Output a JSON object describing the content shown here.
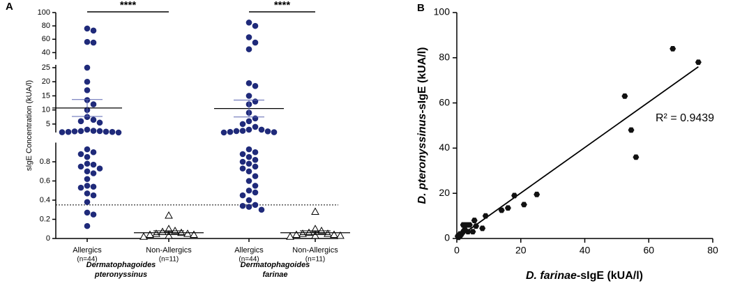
{
  "chart_data": [
    {
      "type": "dot",
      "panel": "A",
      "ylabel": "sIgE Concentration (kUA/l)",
      "y_segments": [
        {
          "ylim": [
            0,
            1
          ],
          "yticks": [
            0,
            0.2,
            0.4,
            0.6,
            0.8
          ]
        },
        {
          "ylim": [
            2,
            26
          ],
          "yticks": [
            5,
            10,
            15,
            20,
            25
          ]
        },
        {
          "ylim": [
            30,
            100
          ],
          "yticks": [
            40,
            60,
            80,
            100
          ]
        }
      ],
      "threshold": 0.35,
      "groups": [
        {
          "name": "Allergics",
          "n_label": "(n=44)",
          "marker": "circle",
          "color": "#1f2a7a",
          "mean": 10.7,
          "sem": 3,
          "values": [
            76,
            73,
            56,
            55,
            25,
            20,
            17,
            13.5,
            12,
            10,
            7.5,
            6.5,
            6,
            5.5,
            3,
            2.6,
            2.5,
            2.5,
            2.4,
            2.3,
            2.2,
            2.2,
            2.1,
            2,
            0.93,
            0.9,
            0.88,
            0.85,
            0.78,
            0.77,
            0.75,
            0.73,
            0.7,
            0.68,
            0.62,
            0.55,
            0.54,
            0.53,
            0.47,
            0.45,
            0.38,
            0.27,
            0.25,
            0.13
          ]
        },
        {
          "name": "Non-Allergics",
          "n_label": "(n=11)",
          "marker": "triangle",
          "color": "#000000",
          "mean": 0.06,
          "sem": 0.02,
          "values": [
            0.24,
            0.1,
            0.08,
            0.07,
            0.06,
            0.05,
            0.05,
            0.04,
            0.04,
            0.03,
            0.02
          ]
        },
        {
          "name": "Allergics",
          "n_label": "(n=44)",
          "marker": "circle",
          "color": "#1f2a7a",
          "mean": 10.5,
          "sem": 3,
          "values": [
            85,
            80,
            63,
            55,
            45,
            19.5,
            18.5,
            15,
            13,
            12,
            9,
            7,
            6,
            5,
            4,
            3,
            3,
            2.6,
            2.5,
            2.4,
            2.2,
            2.1,
            2,
            0.93,
            0.9,
            0.88,
            0.85,
            0.82,
            0.8,
            0.78,
            0.75,
            0.73,
            0.7,
            0.65,
            0.6,
            0.55,
            0.5,
            0.48,
            0.45,
            0.4,
            0.35,
            0.34,
            0.33,
            0.3
          ]
        },
        {
          "name": "Non-Allergics",
          "n_label": "(n=11)",
          "marker": "triangle",
          "color": "#000000",
          "mean": 0.06,
          "sem": 0.02,
          "values": [
            0.28,
            0.1,
            0.08,
            0.06,
            0.05,
            0.05,
            0.04,
            0.04,
            0.03,
            0.03,
            0.02
          ]
        }
      ],
      "allergen_labels": [
        [
          "Dermatophagoides",
          "pteronyssinus"
        ],
        [
          "Dermatophagoides",
          "farinae"
        ]
      ],
      "significance": [
        {
          "label": "****",
          "groups": [
            0,
            1
          ]
        },
        {
          "label": "****",
          "groups": [
            2,
            3
          ]
        }
      ]
    },
    {
      "type": "scatter",
      "panel": "B",
      "xlabel": [
        "D. farinae",
        "-sIgE  (kUA/l)"
      ],
      "ylabel": [
        "D. pteronyssinus",
        "-sIgE (kUA/l)"
      ],
      "xlim": [
        0,
        80
      ],
      "ylim": [
        0,
        100
      ],
      "xticks": [
        0,
        20,
        40,
        60,
        80
      ],
      "yticks": [
        0,
        20,
        40,
        60,
        80,
        100
      ],
      "color": "#111111",
      "annotation": "R² = 0.9439",
      "fit_line": {
        "x": [
          0,
          75.5
        ],
        "y": [
          0,
          76
        ]
      },
      "x": [
        67.5,
        75.5,
        52.5,
        54.5,
        56,
        25,
        21,
        18,
        16,
        14,
        9,
        8,
        6,
        5.5,
        4,
        3,
        2,
        3.5,
        2,
        1.5,
        1,
        0.5,
        5,
        2.5,
        1,
        0.3
      ],
      "y": [
        84,
        78,
        63,
        48,
        36,
        19.5,
        15,
        19,
        13.5,
        12.5,
        10,
        4.5,
        5.5,
        8,
        6,
        6,
        6,
        3,
        3,
        2,
        1,
        0.5,
        3,
        4,
        2,
        1
      ]
    }
  ]
}
